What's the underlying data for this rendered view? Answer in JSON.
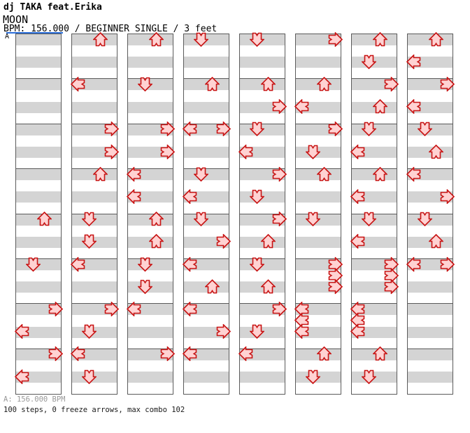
{
  "header": {
    "artist": "dj TAKA feat.Erika",
    "song_title": "MOON",
    "details": "BPM: 156.000 / BEGINNER SINGLE / 3 feet"
  },
  "footer": {
    "tempo_line": "A: 156.000 BPM",
    "stats_line": "100 steps, 0 freeze arrows, max combo 102"
  },
  "colors": {
    "arrow_fill": "#ffd2d2",
    "arrow_outline": "#c81414",
    "stripe_gray": "#d4d4d4",
    "grid_line": "#5a5a5a",
    "section_line_blue": "#2a6dd9"
  },
  "chart_data": {
    "type": "step_chart",
    "title": "MOON",
    "artist": "dj TAKA feat.Erika",
    "bpm": "156.000",
    "difficulty": "BEGINNER SINGLE",
    "feet": 3,
    "stats": {
      "steps": 100,
      "freeze_arrows": 0,
      "max_combo": 102
    },
    "lanes": [
      "left",
      "down",
      "up",
      "right"
    ],
    "columns": 8,
    "rows_per_column": 32,
    "beats_per_measure": 4,
    "section_marker": {
      "label": "A",
      "column": 1,
      "row": 1
    },
    "notes": [
      {
        "col": 1,
        "row": 17,
        "dir": "up"
      },
      {
        "col": 1,
        "row": 21,
        "dir": "down"
      },
      {
        "col": 1,
        "row": 25,
        "dir": "right"
      },
      {
        "col": 1,
        "row": 27,
        "dir": "left"
      },
      {
        "col": 1,
        "row": 29,
        "dir": "right"
      },
      {
        "col": 1,
        "row": 31,
        "dir": "left"
      },
      {
        "col": 2,
        "row": 1,
        "dir": "up"
      },
      {
        "col": 2,
        "row": 5,
        "dir": "left"
      },
      {
        "col": 2,
        "row": 9,
        "dir": "right"
      },
      {
        "col": 2,
        "row": 11,
        "dir": "right"
      },
      {
        "col": 2,
        "row": 13,
        "dir": "up"
      },
      {
        "col": 2,
        "row": 17,
        "dir": "down"
      },
      {
        "col": 2,
        "row": 19,
        "dir": "down"
      },
      {
        "col": 2,
        "row": 21,
        "dir": "left"
      },
      {
        "col": 2,
        "row": 25,
        "dir": "right"
      },
      {
        "col": 2,
        "row": 27,
        "dir": "down"
      },
      {
        "col": 2,
        "row": 29,
        "dir": "left"
      },
      {
        "col": 2,
        "row": 31,
        "dir": "down"
      },
      {
        "col": 3,
        "row": 1,
        "dir": "up"
      },
      {
        "col": 3,
        "row": 5,
        "dir": "down"
      },
      {
        "col": 3,
        "row": 9,
        "dir": "right"
      },
      {
        "col": 3,
        "row": 11,
        "dir": "right"
      },
      {
        "col": 3,
        "row": 13,
        "dir": "left"
      },
      {
        "col": 3,
        "row": 15,
        "dir": "left"
      },
      {
        "col": 3,
        "row": 17,
        "dir": "up"
      },
      {
        "col": 3,
        "row": 19,
        "dir": "up"
      },
      {
        "col": 3,
        "row": 21,
        "dir": "down"
      },
      {
        "col": 3,
        "row": 23,
        "dir": "down"
      },
      {
        "col": 3,
        "row": 25,
        "dir": "left"
      },
      {
        "col": 3,
        "row": 29,
        "dir": "right"
      },
      {
        "col": 4,
        "row": 1,
        "dir": "down"
      },
      {
        "col": 4,
        "row": 5,
        "dir": "up"
      },
      {
        "col": 4,
        "row": 9,
        "dir": "left"
      },
      {
        "col": 4,
        "row": 9,
        "dir": "right"
      },
      {
        "col": 4,
        "row": 13,
        "dir": "down"
      },
      {
        "col": 4,
        "row": 15,
        "dir": "left"
      },
      {
        "col": 4,
        "row": 17,
        "dir": "down"
      },
      {
        "col": 4,
        "row": 19,
        "dir": "right"
      },
      {
        "col": 4,
        "row": 21,
        "dir": "left"
      },
      {
        "col": 4,
        "row": 23,
        "dir": "up"
      },
      {
        "col": 4,
        "row": 25,
        "dir": "left"
      },
      {
        "col": 4,
        "row": 27,
        "dir": "right"
      },
      {
        "col": 4,
        "row": 29,
        "dir": "left"
      },
      {
        "col": 5,
        "row": 1,
        "dir": "down"
      },
      {
        "col": 5,
        "row": 5,
        "dir": "up"
      },
      {
        "col": 5,
        "row": 7,
        "dir": "right"
      },
      {
        "col": 5,
        "row": 9,
        "dir": "down"
      },
      {
        "col": 5,
        "row": 11,
        "dir": "left"
      },
      {
        "col": 5,
        "row": 13,
        "dir": "right"
      },
      {
        "col": 5,
        "row": 15,
        "dir": "down"
      },
      {
        "col": 5,
        "row": 17,
        "dir": "right"
      },
      {
        "col": 5,
        "row": 19,
        "dir": "up"
      },
      {
        "col": 5,
        "row": 21,
        "dir": "down"
      },
      {
        "col": 5,
        "row": 23,
        "dir": "up"
      },
      {
        "col": 5,
        "row": 25,
        "dir": "right"
      },
      {
        "col": 5,
        "row": 27,
        "dir": "down"
      },
      {
        "col": 5,
        "row": 29,
        "dir": "left"
      },
      {
        "col": 6,
        "row": 1,
        "dir": "right"
      },
      {
        "col": 6,
        "row": 5,
        "dir": "up"
      },
      {
        "col": 6,
        "row": 7,
        "dir": "left"
      },
      {
        "col": 6,
        "row": 9,
        "dir": "right"
      },
      {
        "col": 6,
        "row": 11,
        "dir": "down"
      },
      {
        "col": 6,
        "row": 13,
        "dir": "up"
      },
      {
        "col": 6,
        "row": 17,
        "dir": "down"
      },
      {
        "col": 6,
        "row": 21,
        "dir": "right"
      },
      {
        "col": 6,
        "row": 22,
        "dir": "right"
      },
      {
        "col": 6,
        "row": 23,
        "dir": "right"
      },
      {
        "col": 6,
        "row": 25,
        "dir": "left"
      },
      {
        "col": 6,
        "row": 26,
        "dir": "left"
      },
      {
        "col": 6,
        "row": 27,
        "dir": "left"
      },
      {
        "col": 6,
        "row": 29,
        "dir": "up"
      },
      {
        "col": 6,
        "row": 31,
        "dir": "down"
      },
      {
        "col": 7,
        "row": 1,
        "dir": "up"
      },
      {
        "col": 7,
        "row": 3,
        "dir": "down"
      },
      {
        "col": 7,
        "row": 5,
        "dir": "right"
      },
      {
        "col": 7,
        "row": 7,
        "dir": "up"
      },
      {
        "col": 7,
        "row": 9,
        "dir": "down"
      },
      {
        "col": 7,
        "row": 11,
        "dir": "left"
      },
      {
        "col": 7,
        "row": 13,
        "dir": "up"
      },
      {
        "col": 7,
        "row": 15,
        "dir": "left"
      },
      {
        "col": 7,
        "row": 17,
        "dir": "down"
      },
      {
        "col": 7,
        "row": 19,
        "dir": "left"
      },
      {
        "col": 7,
        "row": 21,
        "dir": "right"
      },
      {
        "col": 7,
        "row": 22,
        "dir": "right"
      },
      {
        "col": 7,
        "row": 23,
        "dir": "right"
      },
      {
        "col": 7,
        "row": 25,
        "dir": "left"
      },
      {
        "col": 7,
        "row": 26,
        "dir": "left"
      },
      {
        "col": 7,
        "row": 27,
        "dir": "left"
      },
      {
        "col": 7,
        "row": 29,
        "dir": "up"
      },
      {
        "col": 7,
        "row": 31,
        "dir": "down"
      },
      {
        "col": 8,
        "row": 1,
        "dir": "up"
      },
      {
        "col": 8,
        "row": 3,
        "dir": "left"
      },
      {
        "col": 8,
        "row": 5,
        "dir": "right"
      },
      {
        "col": 8,
        "row": 7,
        "dir": "left"
      },
      {
        "col": 8,
        "row": 9,
        "dir": "down"
      },
      {
        "col": 8,
        "row": 11,
        "dir": "up"
      },
      {
        "col": 8,
        "row": 13,
        "dir": "left"
      },
      {
        "col": 8,
        "row": 15,
        "dir": "right"
      },
      {
        "col": 8,
        "row": 17,
        "dir": "down"
      },
      {
        "col": 8,
        "row": 19,
        "dir": "up"
      },
      {
        "col": 8,
        "row": 21,
        "dir": "left"
      },
      {
        "col": 8,
        "row": 21,
        "dir": "right"
      }
    ]
  }
}
